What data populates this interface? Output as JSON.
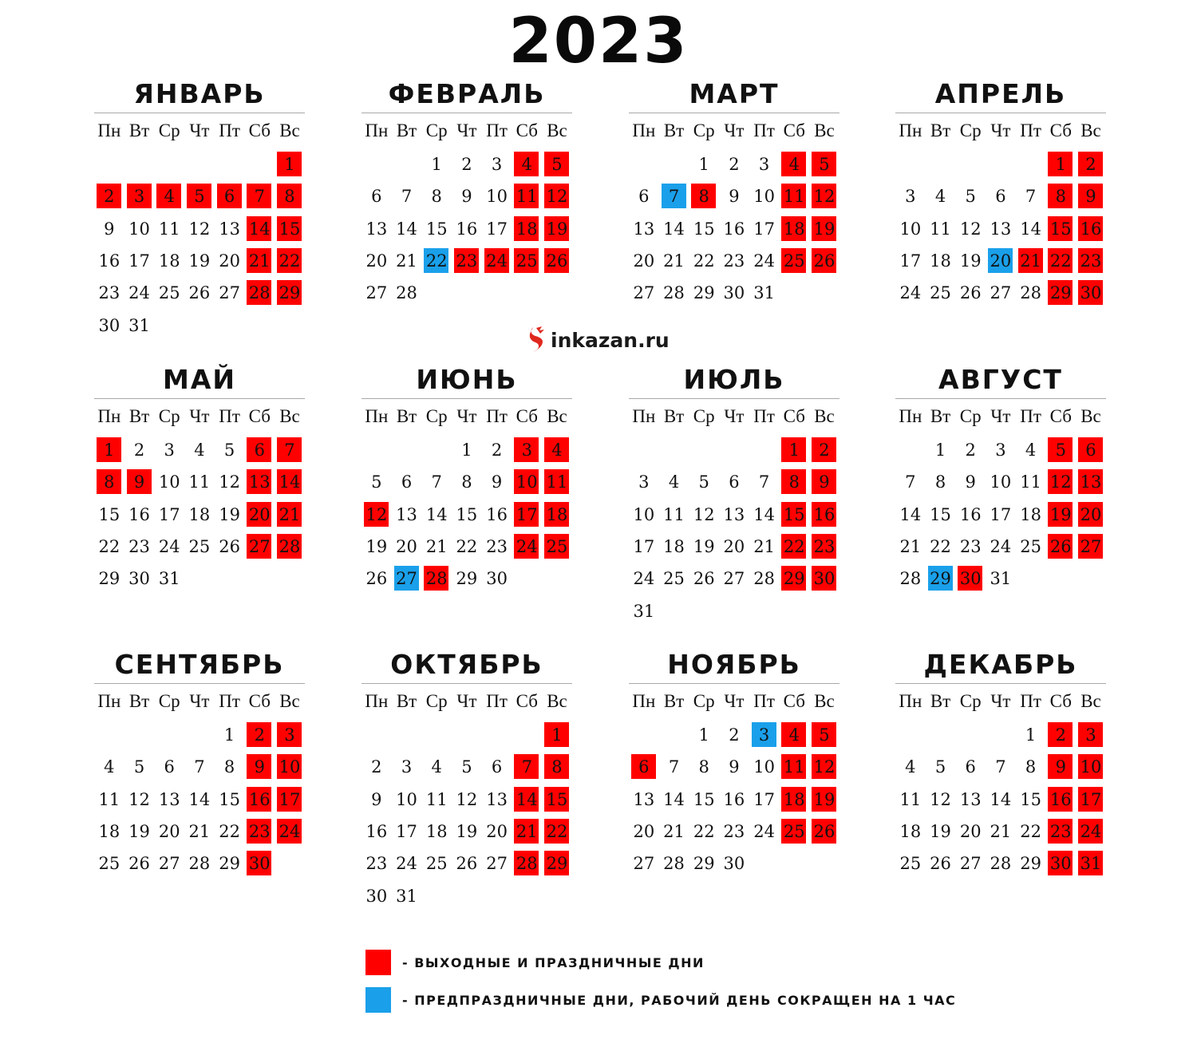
{
  "title": "2023",
  "logo": {
    "text": "inkazan.ru"
  },
  "weekdays": [
    "Пн",
    "Вт",
    "Ср",
    "Чт",
    "Пт",
    "Сб",
    "Вс"
  ],
  "colors": {
    "holiday": "#ff0000",
    "preholiday": "#1aa0ea"
  },
  "months": [
    {
      "name": "ЯНВАРЬ",
      "days": 31,
      "start_weekday": 7,
      "holidays": [
        1,
        2,
        3,
        4,
        5,
        6,
        7,
        8,
        14,
        15,
        21,
        22,
        28,
        29
      ],
      "preholidays": []
    },
    {
      "name": "ФЕВРАЛЬ",
      "days": 28,
      "start_weekday": 3,
      "holidays": [
        4,
        5,
        11,
        12,
        18,
        19,
        23,
        24,
        25,
        26
      ],
      "preholidays": [
        22
      ]
    },
    {
      "name": "МАРТ",
      "days": 31,
      "start_weekday": 3,
      "holidays": [
        4,
        5,
        8,
        11,
        12,
        18,
        19,
        25,
        26
      ],
      "preholidays": [
        7
      ]
    },
    {
      "name": "АПРЕЛЬ",
      "days": 30,
      "start_weekday": 6,
      "holidays": [
        1,
        2,
        8,
        9,
        15,
        16,
        21,
        22,
        23,
        29,
        30
      ],
      "preholidays": [
        20
      ]
    },
    {
      "name": "МАЙ",
      "days": 31,
      "start_weekday": 1,
      "holidays": [
        1,
        6,
        7,
        8,
        9,
        13,
        14,
        20,
        21,
        27,
        28
      ],
      "preholidays": []
    },
    {
      "name": "ИЮНЬ",
      "days": 30,
      "start_weekday": 4,
      "holidays": [
        3,
        4,
        10,
        11,
        12,
        17,
        18,
        24,
        25,
        28
      ],
      "preholidays": [
        27
      ]
    },
    {
      "name": "ИЮЛЬ",
      "days": 31,
      "start_weekday": 6,
      "holidays": [
        1,
        2,
        8,
        9,
        15,
        16,
        22,
        23,
        29,
        30
      ],
      "preholidays": []
    },
    {
      "name": "АВГУСТ",
      "days": 31,
      "start_weekday": 2,
      "holidays": [
        5,
        6,
        12,
        13,
        19,
        20,
        26,
        27,
        30
      ],
      "preholidays": [
        29
      ]
    },
    {
      "name": "СЕНТЯБРЬ",
      "days": 30,
      "start_weekday": 5,
      "holidays": [
        2,
        3,
        9,
        10,
        16,
        17,
        23,
        24,
        30
      ],
      "preholidays": []
    },
    {
      "name": "ОКТЯБРЬ",
      "days": 31,
      "start_weekday": 7,
      "holidays": [
        1,
        7,
        8,
        14,
        15,
        21,
        22,
        28,
        29
      ],
      "preholidays": []
    },
    {
      "name": "НОЯБРЬ",
      "days": 30,
      "start_weekday": 3,
      "holidays": [
        4,
        5,
        6,
        11,
        12,
        18,
        19,
        25,
        26
      ],
      "preholidays": [
        3
      ]
    },
    {
      "name": "ДЕКАБРЬ",
      "days": 31,
      "start_weekday": 5,
      "holidays": [
        2,
        3,
        9,
        10,
        16,
        17,
        23,
        24,
        30,
        31
      ],
      "preholidays": []
    }
  ],
  "legend": [
    {
      "type": "holiday",
      "text": "- ВЫХОДНЫЕ И ПРАЗДНИЧНЫЕ ДНИ"
    },
    {
      "type": "preholiday",
      "text": "- ПРЕДПРАЗДНИЧНЫЕ ДНИ, РАБОЧИЙ ДЕНЬ СОКРАЩЕН НА 1 ЧАС"
    }
  ]
}
